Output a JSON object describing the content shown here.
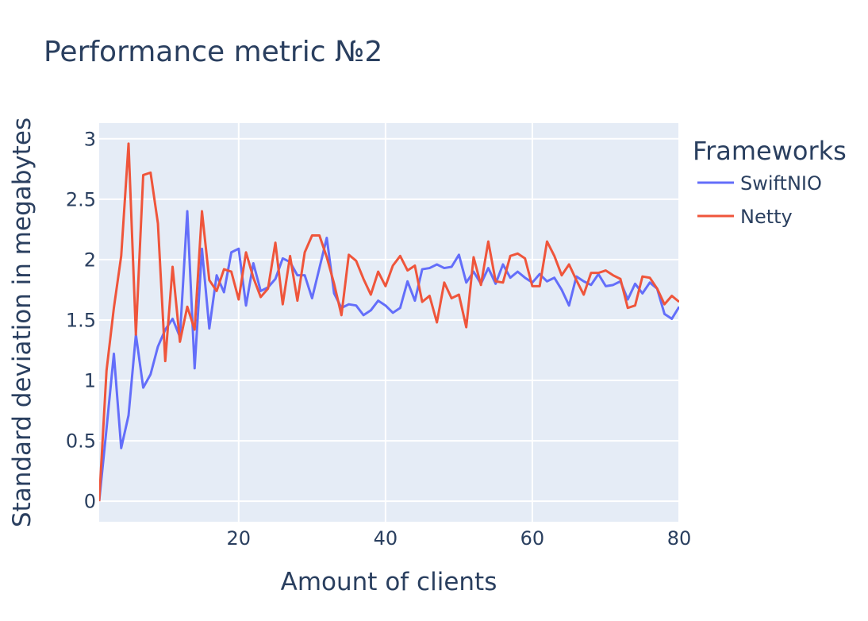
{
  "chart_data": {
    "type": "line",
    "title": "Performance metric №2",
    "xlabel": "Amount of clients",
    "ylabel": "Standard deviation in megabytes",
    "xlim": [
      1,
      80
    ],
    "ylim": [
      -0.17,
      3.13
    ],
    "x_ticks": [
      20,
      40,
      60,
      80
    ],
    "y_ticks": [
      0,
      0.5,
      1,
      1.5,
      2,
      2.5,
      3
    ],
    "x_tick_labels": [
      "20",
      "40",
      "60",
      "80"
    ],
    "y_tick_labels": [
      "0",
      "0.5",
      "1",
      "1.5",
      "2",
      "2.5",
      "3"
    ],
    "grid": true,
    "plot_background": "#e5ecf6",
    "legend": {
      "title": "Frameworks",
      "placement": "right"
    },
    "x": [
      1,
      2,
      3,
      4,
      5,
      6,
      7,
      8,
      9,
      10,
      11,
      12,
      13,
      14,
      15,
      16,
      17,
      18,
      19,
      20,
      21,
      22,
      23,
      24,
      25,
      26,
      27,
      28,
      29,
      30,
      31,
      32,
      33,
      34,
      35,
      36,
      37,
      38,
      39,
      40,
      41,
      42,
      43,
      44,
      45,
      46,
      47,
      48,
      49,
      50,
      51,
      52,
      53,
      54,
      55,
      56,
      57,
      58,
      59,
      60,
      61,
      62,
      63,
      64,
      65,
      66,
      67,
      68,
      69,
      70,
      71,
      72,
      73,
      74,
      75,
      76,
      77,
      78,
      79,
      80
    ],
    "series": [
      {
        "name": "SwiftNIO",
        "color": "#636efa",
        "values": [
          0,
          0.6,
          1.22,
          0.44,
          0.71,
          1.38,
          0.94,
          1.05,
          1.28,
          1.42,
          1.51,
          1.36,
          2.4,
          1.1,
          2.09,
          1.43,
          1.87,
          1.73,
          2.06,
          2.09,
          1.62,
          1.97,
          1.74,
          1.77,
          1.84,
          2.01,
          1.98,
          1.87,
          1.87,
          1.68,
          1.93,
          2.18,
          1.72,
          1.6,
          1.63,
          1.62,
          1.54,
          1.58,
          1.66,
          1.62,
          1.56,
          1.6,
          1.82,
          1.66,
          1.92,
          1.93,
          1.96,
          1.93,
          1.94,
          2.04,
          1.81,
          1.9,
          1.8,
          1.93,
          1.8,
          1.96,
          1.85,
          1.9,
          1.85,
          1.81,
          1.88,
          1.82,
          1.85,
          1.75,
          1.62,
          1.86,
          1.82,
          1.79,
          1.88,
          1.78,
          1.79,
          1.82,
          1.67,
          1.8,
          1.72,
          1.81,
          1.76,
          1.55,
          1.51,
          1.61
        ]
      },
      {
        "name": "Netty",
        "color": "#ef553b",
        "values": [
          0,
          1.08,
          1.6,
          2.03,
          2.96,
          1.38,
          2.7,
          2.72,
          2.3,
          1.16,
          1.94,
          1.32,
          1.61,
          1.42,
          2.4,
          1.83,
          1.74,
          1.92,
          1.9,
          1.67,
          2.06,
          1.85,
          1.69,
          1.76,
          2.14,
          1.63,
          2.03,
          1.66,
          2.06,
          2.2,
          2.2,
          2.02,
          1.8,
          1.54,
          2.04,
          1.99,
          1.84,
          1.71,
          1.9,
          1.78,
          1.95,
          2.03,
          1.91,
          1.95,
          1.65,
          1.7,
          1.48,
          1.81,
          1.68,
          1.71,
          1.44,
          2.02,
          1.79,
          2.15,
          1.82,
          1.81,
          2.03,
          2.05,
          2.01,
          1.78,
          1.78,
          2.15,
          2.03,
          1.87,
          1.96,
          1.83,
          1.71,
          1.89,
          1.89,
          1.91,
          1.87,
          1.84,
          1.6,
          1.62,
          1.86,
          1.85,
          1.76,
          1.63,
          1.7,
          1.65
        ]
      }
    ]
  }
}
